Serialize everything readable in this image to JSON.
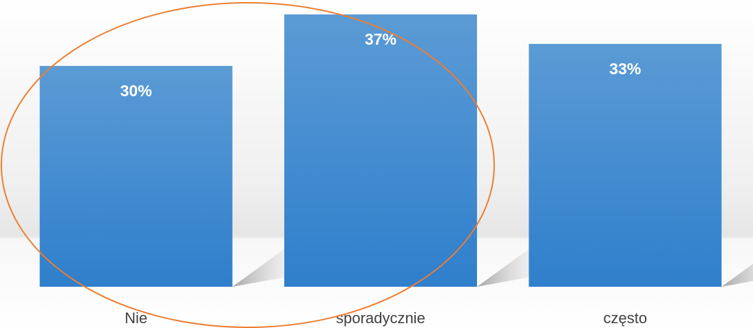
{
  "chart_data": {
    "type": "bar",
    "categories": [
      "Nie",
      "sporadycznie",
      "często"
    ],
    "values": [
      30,
      37,
      33
    ],
    "value_labels": [
      "30%",
      "37%",
      "33%"
    ],
    "color": "#5b9bd5"
  }
}
